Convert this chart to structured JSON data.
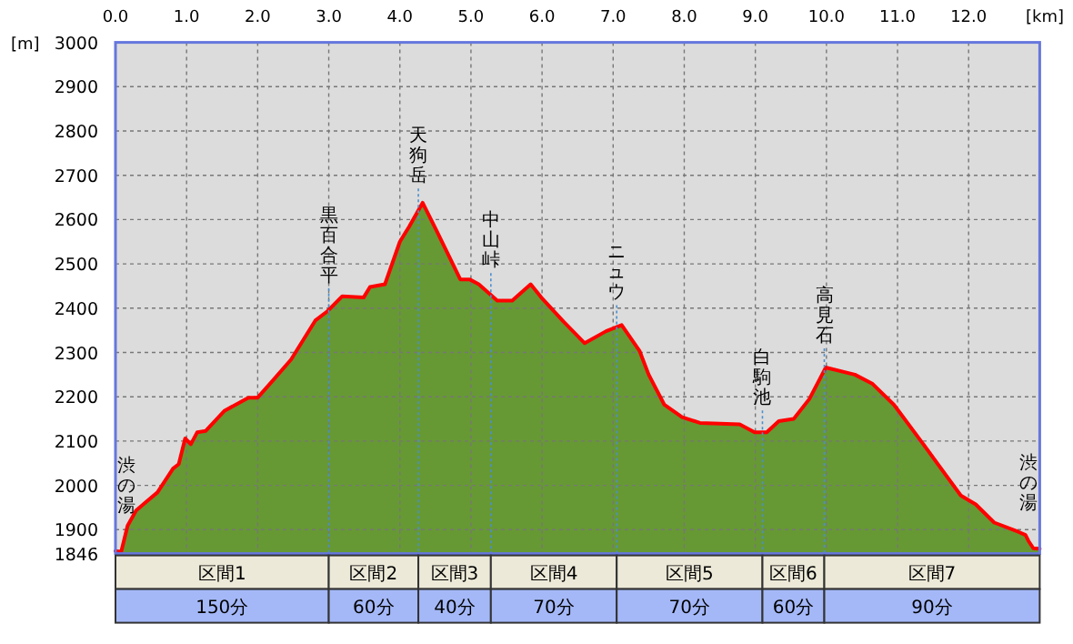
{
  "chart_data": {
    "type": "area",
    "xlabel": "[km]",
    "ylabel": "[m]",
    "x": [
      0,
      0.08,
      0.17,
      0.29,
      0.42,
      0.59,
      0.81,
      0.89,
      0.98,
      1.06,
      1.15,
      1.27,
      1.53,
      1.87,
      2.0,
      2.21,
      2.47,
      2.81,
      2.98,
      3.19,
      3.49,
      3.58,
      3.79,
      4.0,
      4.13,
      4.32,
      4.51,
      4.85,
      4.98,
      5.11,
      5.37,
      5.58,
      5.84,
      5.99,
      6.3,
      6.6,
      6.9,
      7.12,
      7.37,
      7.5,
      7.72,
      7.97,
      8.22,
      8.78,
      8.99,
      9.16,
      9.33,
      9.54,
      9.76,
      9.99,
      10.4,
      10.65,
      10.95,
      11.33,
      11.89,
      12.1,
      12.36,
      12.7,
      12.8,
      12.84,
      12.91,
      13.0
    ],
    "series": [
      {
        "color": "#669933",
        "values": [
          1852,
          1850,
          1909,
          1943,
          1961,
          1984,
          2038,
          2048,
          2106,
          2093,
          2120,
          2123,
          2168,
          2198,
          2198,
          2236,
          2284,
          2372,
          2393,
          2427,
          2424,
          2448,
          2454,
          2550,
          2584,
          2638,
          2577,
          2465,
          2465,
          2454,
          2417,
          2417,
          2454,
          2424,
          2370,
          2321,
          2348,
          2362,
          2304,
          2250,
          2182,
          2154,
          2141,
          2138,
          2120,
          2120,
          2145,
          2150,
          2195,
          2266,
          2250,
          2229,
          2182,
          2100,
          1977,
          1957,
          1916,
          1895,
          1888,
          1875,
          1858,
          1857
        ]
      }
    ],
    "xlim": [
      0,
      13.0
    ],
    "xticks": [
      {
        "value": 0,
        "label": "0.0"
      },
      {
        "value": 1,
        "label": "1.0"
      },
      {
        "value": 2,
        "label": "2.0"
      },
      {
        "value": 3,
        "label": "3.0"
      },
      {
        "value": 4,
        "label": "4.0"
      },
      {
        "value": 5,
        "label": "5.0"
      },
      {
        "value": 6,
        "label": "6.0"
      },
      {
        "value": 7,
        "label": "7.0"
      },
      {
        "value": 8,
        "label": "8.0"
      },
      {
        "value": 9,
        "label": "9.0"
      },
      {
        "value": 10,
        "label": "10.0"
      },
      {
        "value": 11,
        "label": "11.0"
      },
      {
        "value": 12,
        "label": "12.0"
      }
    ],
    "ylim": [
      1846,
      3000
    ],
    "yticks": [
      1846,
      1900,
      2000,
      2100,
      2200,
      2300,
      2400,
      2500,
      2600,
      2700,
      2800,
      2900,
      3000
    ],
    "grid": true,
    "ref_lines": [
      {
        "axis": "x",
        "value": 3.0,
        "label": "黒百合平",
        "color": "#4a8fd0",
        "line_style": "dotted"
      },
      {
        "axis": "x",
        "value": 4.26,
        "label": "天狗岳",
        "color": "#4a8fd0",
        "line_style": "dotted"
      },
      {
        "axis": "x",
        "value": 5.28,
        "label": "中山峠",
        "color": "#4a8fd0",
        "line_style": "dotted"
      },
      {
        "axis": "x",
        "value": 7.05,
        "label": "ニュウ",
        "color": "#4a8fd0",
        "line_style": "dotted"
      },
      {
        "axis": "x",
        "value": 9.1,
        "label": "白駒池",
        "color": "#4a8fd0",
        "line_style": "dotted"
      },
      {
        "axis": "x",
        "value": 9.97,
        "label": "高見石",
        "color": "#4a8fd0",
        "line_style": "dotted"
      }
    ],
    "annotations": [
      "区間1",
      "区間2",
      "区間3",
      "区間4",
      "区間5",
      "区間6",
      "区間7",
      "150分",
      "60分",
      "40分",
      "70分",
      "70分",
      "60分",
      "90分",
      {
        "text": "渋の湯",
        "x": 0,
        "y": 1852
      },
      {
        "text": "渋の湯",
        "x": 13.0,
        "y": 1857
      }
    ]
  }
}
